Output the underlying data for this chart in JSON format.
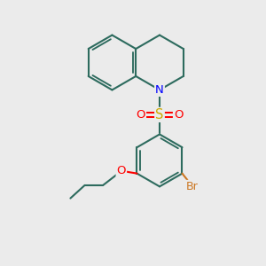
{
  "background_color": "#ebebeb",
  "bond_color": "#2d6b5e",
  "bond_width": 1.5,
  "atom_colors": {
    "N": "#0000ff",
    "S": "#ccaa00",
    "O": "#ff0000",
    "Br": "#cc7722"
  },
  "font_size": 8.5,
  "figsize": [
    3.0,
    3.0
  ],
  "dpi": 100
}
